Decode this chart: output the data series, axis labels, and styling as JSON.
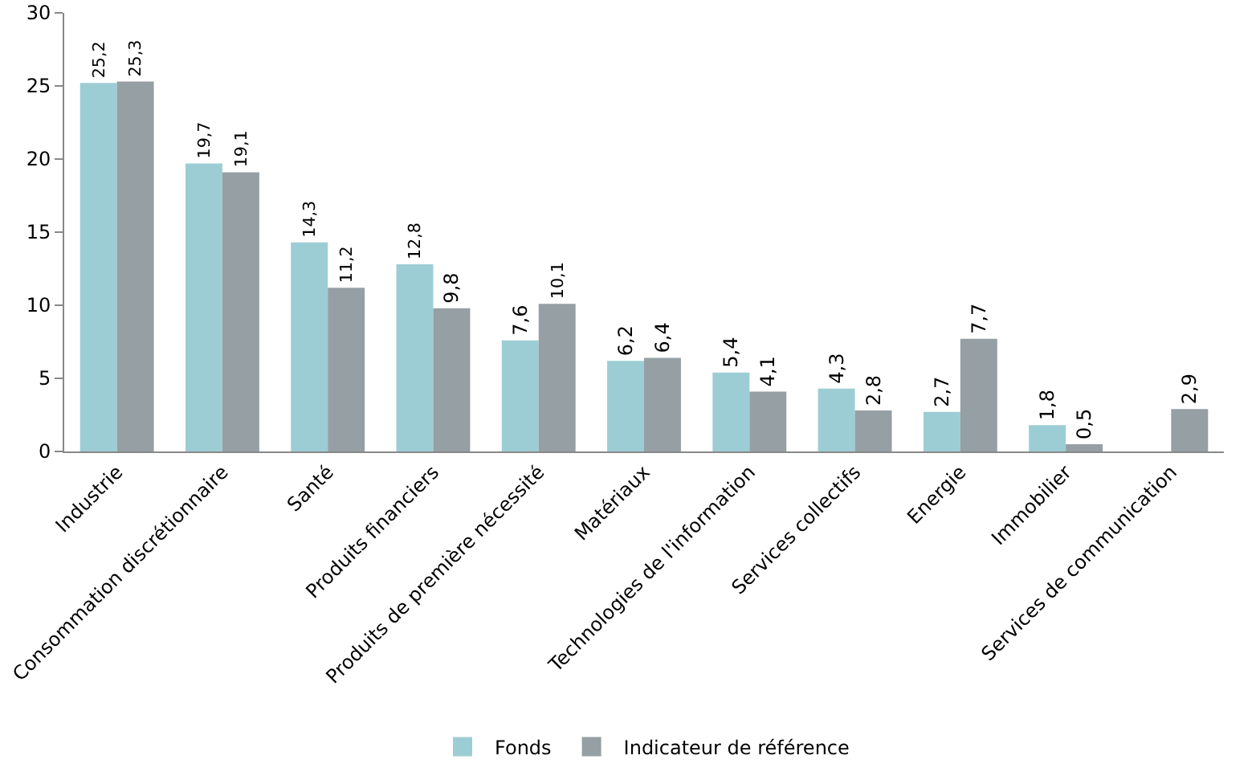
{
  "chart_data": {
    "type": "bar",
    "categories": [
      "Industrie",
      "Consommation discrétionnaire",
      "Santé",
      "Produits financiers",
      "Produits de première nécessité",
      "Matériaux",
      "Technologies de l'information",
      "Services collectifs",
      "Energie",
      "Immobilier",
      "Services de communication"
    ],
    "series": [
      {
        "name": "Fonds",
        "color": "#9dcdd4",
        "values": [
          25.2,
          19.7,
          14.3,
          12.8,
          7.6,
          6.2,
          5.4,
          4.3,
          2.7,
          1.8,
          null
        ],
        "value_labels": [
          "25,2",
          "19,7",
          "14,3",
          "12,8",
          "7,6",
          "6,2",
          "5,4",
          "4,3",
          "2,7",
          "1,8",
          null
        ]
      },
      {
        "name": "Indicateur de référence",
        "color": "#959fa4",
        "values": [
          25.3,
          19.1,
          11.2,
          9.8,
          10.1,
          6.4,
          4.1,
          2.8,
          7.7,
          0.5,
          2.9
        ],
        "value_labels": [
          "25,3",
          "19,1",
          "11,2",
          "9,8",
          "10,1",
          "6,4",
          "4,1",
          "2,8",
          "7,7",
          "0,5",
          "2,9"
        ]
      }
    ],
    "ylim": [
      0,
      30
    ],
    "yticks": [
      0,
      5,
      10,
      15,
      20,
      25,
      30
    ],
    "grid": false,
    "legend": "bottom"
  }
}
